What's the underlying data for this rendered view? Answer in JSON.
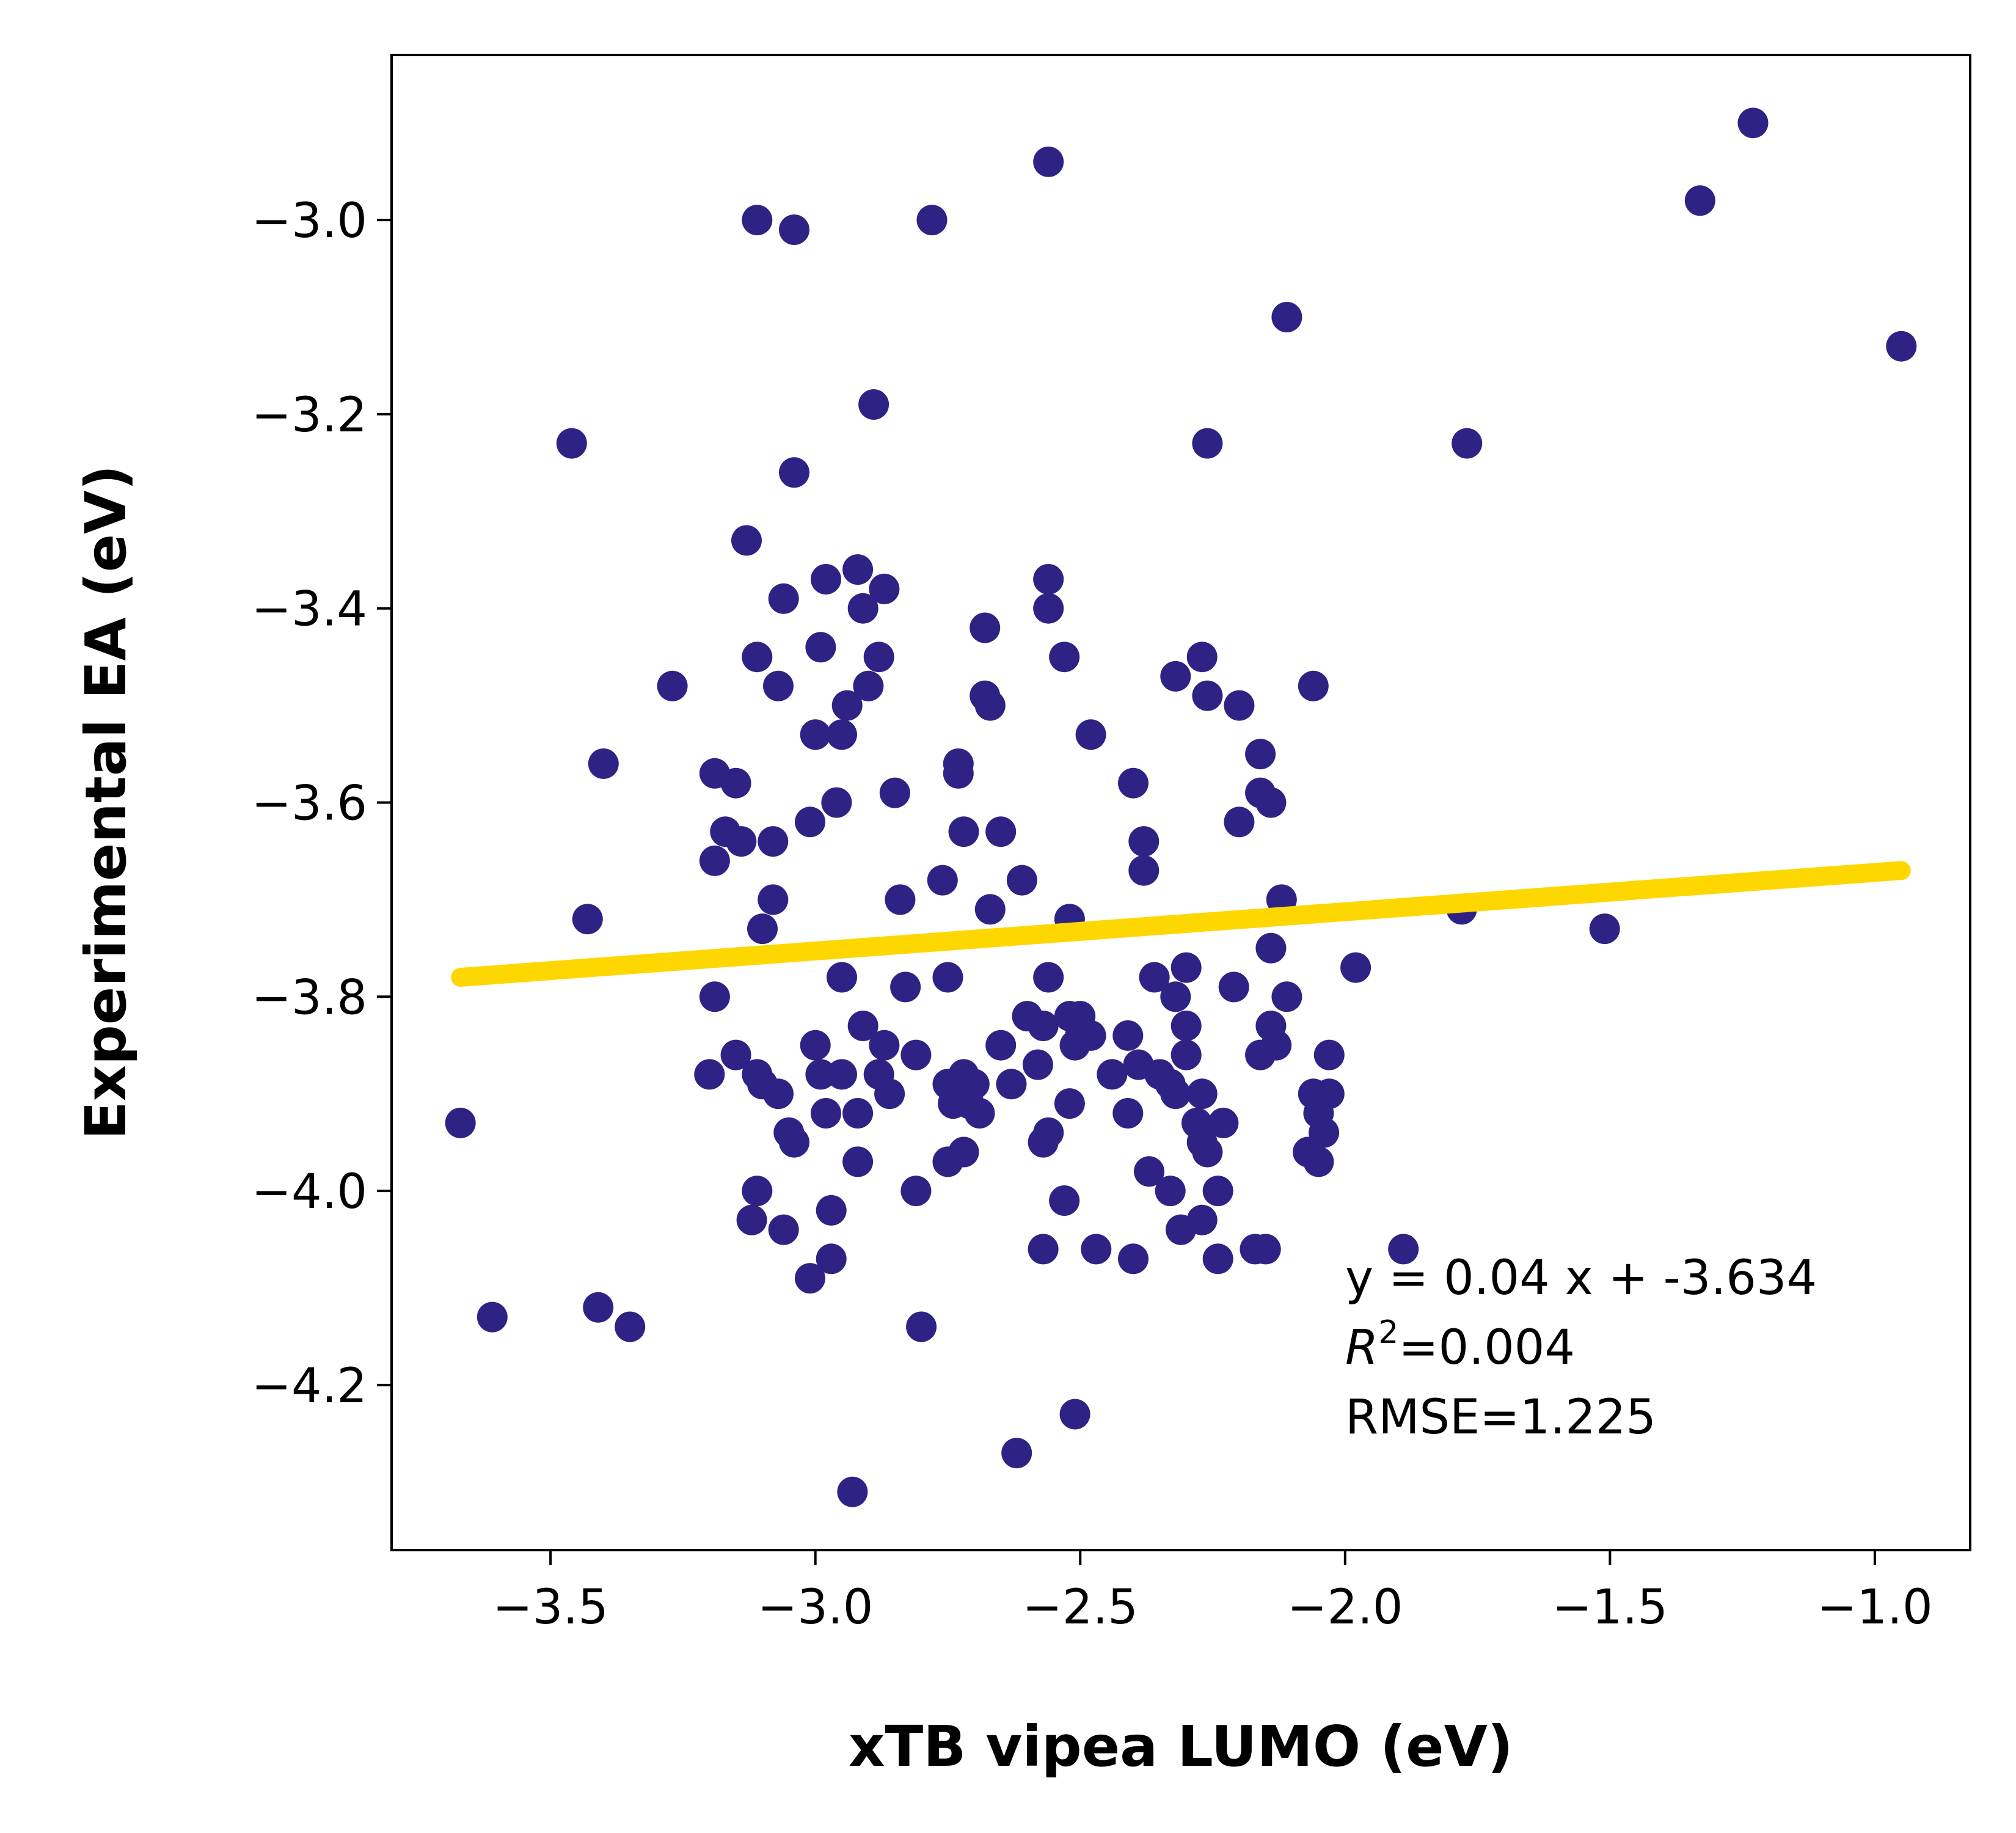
{
  "chart_data": {
    "type": "scatter",
    "xlabel": "xTB vipea LUMO (eV)",
    "ylabel": "Experimental EA (eV)",
    "xlim": [
      -3.8,
      -0.82
    ],
    "ylim": [
      -4.37,
      -2.83
    ],
    "x_ticks": [
      -3.5,
      -3.0,
      -2.5,
      -2.0,
      -1.5,
      -1.0
    ],
    "x_tick_labels": [
      "−3.5",
      "−3.0",
      "−2.5",
      "−2.0",
      "−1.5",
      "−1.0"
    ],
    "y_ticks": [
      -4.2,
      -4.0,
      -3.8,
      -3.6,
      -3.4,
      -3.2,
      -3.0
    ],
    "y_tick_labels": [
      "−4.2",
      "−4.0",
      "−3.8",
      "−3.6",
      "−3.4",
      "−3.2",
      "−3.0"
    ],
    "grid": false,
    "colors": {
      "points": "#2e2385",
      "fit_line": "#ffd700",
      "axes": "#000000"
    },
    "fit_line": {
      "x": [
        -3.67,
        -0.95
      ],
      "y": [
        -3.78,
        -3.67
      ]
    },
    "annotation": {
      "equation": "y = 0.04 x + -3.634",
      "r2_symbol": "R",
      "r2_exp": "2",
      "r2_value": "=0.004",
      "rmse": "RMSE=1.225"
    },
    "points": [
      [
        -3.67,
        -3.93
      ],
      [
        -3.61,
        -4.13
      ],
      [
        -3.46,
        -3.23
      ],
      [
        -3.43,
        -3.72
      ],
      [
        -3.41,
        -4.12
      ],
      [
        -3.4,
        -3.56
      ],
      [
        -3.35,
        -4.14
      ],
      [
        -3.27,
        -3.48
      ],
      [
        -3.2,
        -3.88
      ],
      [
        -3.19,
        -3.66
      ],
      [
        -3.19,
        -3.8
      ],
      [
        -3.19,
        -3.57
      ],
      [
        -3.17,
        -3.63
      ],
      [
        -3.15,
        -3.86
      ],
      [
        -3.15,
        -3.58
      ],
      [
        -3.14,
        -3.64
      ],
      [
        -3.13,
        -3.33
      ],
      [
        -3.12,
        -4.03
      ],
      [
        -3.11,
        -3.0
      ],
      [
        -3.11,
        -3.45
      ],
      [
        -3.11,
        -4.0
      ],
      [
        -3.11,
        -3.88
      ],
      [
        -3.1,
        -3.73
      ],
      [
        -3.1,
        -3.89
      ],
      [
        -3.08,
        -3.64
      ],
      [
        -3.08,
        -3.7
      ],
      [
        -3.07,
        -3.48
      ],
      [
        -3.07,
        -3.9
      ],
      [
        -3.06,
        -3.39
      ],
      [
        -3.06,
        -4.04
      ],
      [
        -3.05,
        -3.94
      ],
      [
        -3.04,
        -3.95
      ],
      [
        -3.04,
        -3.01
      ],
      [
        -3.04,
        -3.26
      ],
      [
        -3.01,
        -3.62
      ],
      [
        -3.01,
        -4.09
      ],
      [
        -3.0,
        -3.53
      ],
      [
        -3.0,
        -3.85
      ],
      [
        -2.99,
        -3.44
      ],
      [
        -2.99,
        -3.88
      ],
      [
        -2.98,
        -3.37
      ],
      [
        -2.98,
        -3.92
      ],
      [
        -2.97,
        -4.07
      ],
      [
        -2.97,
        -4.02
      ],
      [
        -2.96,
        -3.6
      ],
      [
        -2.95,
        -3.53
      ],
      [
        -2.95,
        -3.78
      ],
      [
        -2.95,
        -3.88
      ],
      [
        -2.94,
        -3.5
      ],
      [
        -2.93,
        -4.31
      ],
      [
        -2.92,
        -3.92
      ],
      [
        -2.92,
        -3.97
      ],
      [
        -2.92,
        -3.36
      ],
      [
        -2.91,
        -3.4
      ],
      [
        -2.91,
        -3.83
      ],
      [
        -2.9,
        -3.48
      ],
      [
        -2.89,
        -3.19
      ],
      [
        -2.88,
        -3.88
      ],
      [
        -2.88,
        -3.45
      ],
      [
        -2.87,
        -3.38
      ],
      [
        -2.87,
        -3.85
      ],
      [
        -2.86,
        -3.9
      ],
      [
        -2.85,
        -3.59
      ],
      [
        -2.84,
        -3.7
      ],
      [
        -2.83,
        -3.79
      ],
      [
        -2.81,
        -4.0
      ],
      [
        -2.81,
        -3.86
      ],
      [
        -2.8,
        -4.14
      ],
      [
        -2.78,
        -3.0
      ],
      [
        -2.76,
        -3.68
      ],
      [
        -2.75,
        -3.97
      ],
      [
        -2.75,
        -3.89
      ],
      [
        -2.75,
        -3.78
      ],
      [
        -2.74,
        -3.91
      ],
      [
        -2.73,
        -3.57
      ],
      [
        -2.73,
        -3.56
      ],
      [
        -2.72,
        -3.88
      ],
      [
        -2.72,
        -3.96
      ],
      [
        -2.72,
        -3.63
      ],
      [
        -2.71,
        -3.91
      ],
      [
        -2.7,
        -3.89
      ],
      [
        -2.69,
        -3.92
      ],
      [
        -2.68,
        -3.42
      ],
      [
        -2.68,
        -3.49
      ],
      [
        -2.67,
        -3.5
      ],
      [
        -2.67,
        -3.71
      ],
      [
        -2.65,
        -3.63
      ],
      [
        -2.65,
        -3.85
      ],
      [
        -2.63,
        -3.89
      ],
      [
        -2.62,
        -4.27
      ],
      [
        -2.61,
        -3.68
      ],
      [
        -2.6,
        -3.82
      ],
      [
        -2.58,
        -3.87
      ],
      [
        -2.57,
        -3.95
      ],
      [
        -2.57,
        -3.83
      ],
      [
        -2.57,
        -4.06
      ],
      [
        -2.56,
        -3.4
      ],
      [
        -2.56,
        -3.37
      ],
      [
        -2.56,
        -2.94
      ],
      [
        -2.56,
        -3.78
      ],
      [
        -2.56,
        -3.94
      ],
      [
        -2.53,
        -3.45
      ],
      [
        -2.53,
        -4.01
      ],
      [
        -2.52,
        -3.91
      ],
      [
        -2.52,
        -3.82
      ],
      [
        -2.52,
        -3.72
      ],
      [
        -2.51,
        -3.85
      ],
      [
        -2.51,
        -4.23
      ],
      [
        -2.5,
        -3.84
      ],
      [
        -2.5,
        -3.82
      ],
      [
        -2.48,
        -3.53
      ],
      [
        -2.48,
        -3.84
      ],
      [
        -2.47,
        -4.06
      ],
      [
        -2.44,
        -3.88
      ],
      [
        -2.41,
        -3.84
      ],
      [
        -2.41,
        -3.92
      ],
      [
        -2.4,
        -4.07
      ],
      [
        -2.4,
        -3.58
      ],
      [
        -2.39,
        -3.87
      ],
      [
        -2.38,
        -3.64
      ],
      [
        -2.38,
        -3.67
      ],
      [
        -2.37,
        -3.98
      ],
      [
        -2.36,
        -3.78
      ],
      [
        -2.35,
        -3.88
      ],
      [
        -2.33,
        -4.0
      ],
      [
        -2.33,
        -3.89
      ],
      [
        -2.32,
        -3.9
      ],
      [
        -2.32,
        -3.8
      ],
      [
        -2.32,
        -3.47
      ],
      [
        -2.31,
        -4.04
      ],
      [
        -2.3,
        -3.86
      ],
      [
        -2.3,
        -3.83
      ],
      [
        -2.3,
        -3.77
      ],
      [
        -2.28,
        -3.93
      ],
      [
        -2.27,
        -3.45
      ],
      [
        -2.27,
        -3.95
      ],
      [
        -2.27,
        -3.9
      ],
      [
        -2.27,
        -4.03
      ],
      [
        -2.26,
        -3.23
      ],
      [
        -2.26,
        -3.49
      ],
      [
        -2.26,
        -3.96
      ],
      [
        -2.24,
        -4.0
      ],
      [
        -2.24,
        -4.07
      ],
      [
        -2.23,
        -3.93
      ],
      [
        -2.21,
        -3.79
      ],
      [
        -2.2,
        -3.62
      ],
      [
        -2.2,
        -3.5
      ],
      [
        -2.17,
        -4.06
      ],
      [
        -2.16,
        -3.86
      ],
      [
        -2.16,
        -3.59
      ],
      [
        -2.16,
        -3.55
      ],
      [
        -2.15,
        -4.06
      ],
      [
        -2.14,
        -3.83
      ],
      [
        -2.14,
        -3.6
      ],
      [
        -2.14,
        -3.75
      ],
      [
        -2.13,
        -3.85
      ],
      [
        -2.12,
        -3.7
      ],
      [
        -2.11,
        -3.8
      ],
      [
        -2.11,
        -3.1
      ],
      [
        -2.07,
        -3.96
      ],
      [
        -2.06,
        -3.48
      ],
      [
        -2.06,
        -3.9
      ],
      [
        -2.05,
        -3.97
      ],
      [
        -2.05,
        -3.92
      ],
      [
        -2.04,
        -3.94
      ],
      [
        -2.03,
        -3.9
      ],
      [
        -2.03,
        -3.86
      ],
      [
        -1.98,
        -3.77
      ],
      [
        -1.89,
        -4.06
      ],
      [
        -1.78,
        -3.71
      ],
      [
        -1.77,
        -3.23
      ],
      [
        -1.51,
        -3.73
      ],
      [
        -1.33,
        -2.98
      ],
      [
        -1.23,
        -2.9
      ],
      [
        -0.95,
        -3.13
      ]
    ]
  }
}
